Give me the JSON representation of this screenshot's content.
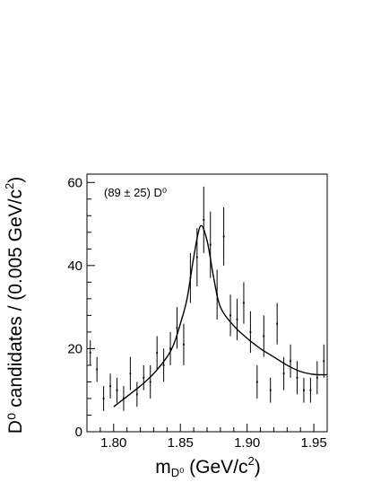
{
  "chart_data": {
    "type": "scatter",
    "xlabel": "m",
    "xlabel_sub": "D⁰",
    "xlabel_unit": " (GeV/c",
    "xlabel_unit_sup": "2",
    "xlabel_tail": ")",
    "ylabel": "D⁰ candidates / (0.005 GeV/c",
    "ylabel_sup": "2",
    "ylabel_tail": ")",
    "annotation": "(89 ± 25) D⁰",
    "xlim": [
      1.78,
      1.96
    ],
    "ylim": [
      0,
      62
    ],
    "x_ticks": [
      1.8,
      1.85,
      1.9,
      1.95
    ],
    "x_tick_labels": [
      "1.80",
      "1.85",
      "1.90",
      "1.95"
    ],
    "y_ticks": [
      0,
      20,
      40,
      60
    ],
    "y_tick_labels": [
      "0",
      "20",
      "40",
      "60"
    ],
    "grid": false,
    "series": [
      {
        "points": [
          {
            "x": 1.7825,
            "y": 19,
            "err": 3
          },
          {
            "x": 1.7875,
            "y": 15,
            "err": 3
          },
          {
            "x": 1.7925,
            "y": 8,
            "err": 3
          },
          {
            "x": 1.7975,
            "y": 11,
            "err": 3
          },
          {
            "x": 1.8025,
            "y": 10,
            "err": 3
          },
          {
            "x": 1.8075,
            "y": 8,
            "err": 3
          },
          {
            "x": 1.8125,
            "y": 14,
            "err": 4
          },
          {
            "x": 1.8175,
            "y": 9,
            "err": 3
          },
          {
            "x": 1.8225,
            "y": 13,
            "err": 3
          },
          {
            "x": 1.8275,
            "y": 12,
            "err": 4
          },
          {
            "x": 1.8325,
            "y": 19,
            "err": 4
          },
          {
            "x": 1.8375,
            "y": 16,
            "err": 4
          },
          {
            "x": 1.8425,
            "y": 20,
            "err": 4
          },
          {
            "x": 1.8475,
            "y": 25,
            "err": 5
          },
          {
            "x": 1.8525,
            "y": 21,
            "err": 5
          },
          {
            "x": 1.8575,
            "y": 37,
            "err": 6
          },
          {
            "x": 1.8625,
            "y": 42,
            "err": 7
          },
          {
            "x": 1.8675,
            "y": 51,
            "err": 8
          },
          {
            "x": 1.8725,
            "y": 45,
            "err": 8
          },
          {
            "x": 1.8775,
            "y": 33,
            "err": 6
          },
          {
            "x": 1.8825,
            "y": 47,
            "err": 7
          },
          {
            "x": 1.8875,
            "y": 28,
            "err": 5
          },
          {
            "x": 1.8925,
            "y": 27,
            "err": 5
          },
          {
            "x": 1.8975,
            "y": 31,
            "err": 5
          },
          {
            "x": 1.9025,
            "y": 24,
            "err": 5
          },
          {
            "x": 1.9075,
            "y": 12,
            "err": 4
          },
          {
            "x": 1.9125,
            "y": 23,
            "err": 5
          },
          {
            "x": 1.9175,
            "y": 10,
            "err": 3
          },
          {
            "x": 1.9225,
            "y": 26,
            "err": 5
          },
          {
            "x": 1.9275,
            "y": 14,
            "err": 4
          },
          {
            "x": 1.9325,
            "y": 17,
            "err": 4
          },
          {
            "x": 1.9375,
            "y": 13,
            "err": 4
          },
          {
            "x": 1.9425,
            "y": 10,
            "err": 3
          },
          {
            "x": 1.9475,
            "y": 10,
            "err": 3
          },
          {
            "x": 1.9525,
            "y": 13,
            "err": 4
          },
          {
            "x": 1.9575,
            "y": 17,
            "err": 4
          }
        ]
      }
    ],
    "fit_curve": [
      [
        1.8,
        6
      ],
      [
        1.81,
        8.5
      ],
      [
        1.82,
        11
      ],
      [
        1.83,
        14
      ],
      [
        1.84,
        18
      ],
      [
        1.845,
        21
      ],
      [
        1.85,
        26
      ],
      [
        1.855,
        32
      ],
      [
        1.86,
        42
      ],
      [
        1.865,
        49.5
      ],
      [
        1.87,
        46
      ],
      [
        1.875,
        37
      ],
      [
        1.88,
        30
      ],
      [
        1.89,
        25.5
      ],
      [
        1.9,
        22.5
      ],
      [
        1.91,
        20
      ],
      [
        1.92,
        18
      ],
      [
        1.93,
        16
      ],
      [
        1.94,
        14.5
      ],
      [
        1.95,
        13.8
      ],
      [
        1.96,
        13.7
      ]
    ]
  }
}
